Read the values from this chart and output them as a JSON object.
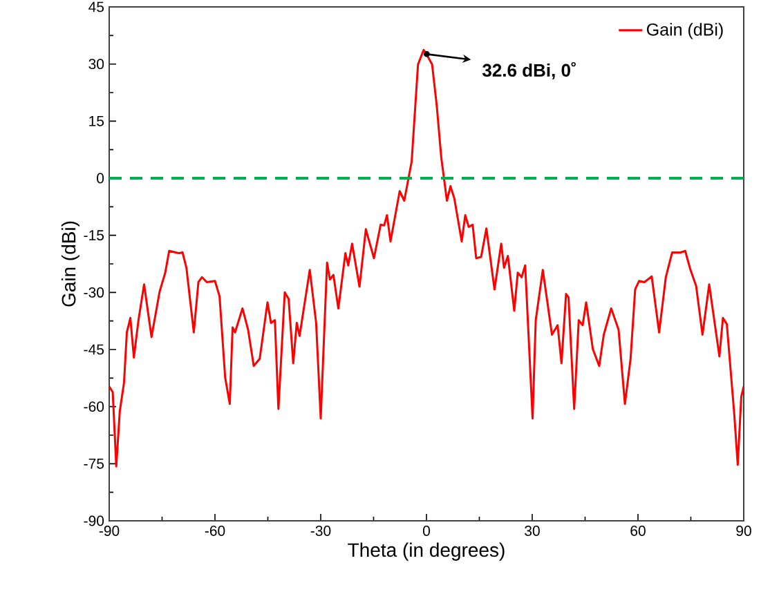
{
  "chart_data": {
    "type": "line",
    "xlabel": "Theta (in degrees)",
    "ylabel": "Gain (dBi)",
    "xlim": [
      -90,
      90
    ],
    "ylim": [
      -90,
      45
    ],
    "xticks": [
      -90,
      -60,
      -30,
      0,
      30,
      60,
      90
    ],
    "yticks": [
      -90,
      -75,
      -60,
      -45,
      -30,
      -15,
      0,
      15,
      30,
      45
    ],
    "legend": "top right",
    "grid": false,
    "marker": "none",
    "line_style": "solid",
    "ref_lines": [
      {
        "axis": "y",
        "value": 0,
        "color": "#00b050",
        "line_style": "dashed"
      }
    ],
    "annotations": [
      {
        "text": "**32.6 dBi, 0˚**",
        "x": 0,
        "y": 32.6
      }
    ],
    "series": [
      {
        "name": "Gain (dBi)",
        "color": "#ff0000",
        "x": [
          -90,
          -89,
          -88,
          -87,
          -85.8,
          -85,
          -84,
          -83,
          -81.7,
          -80.1,
          -78,
          -75.7,
          -74.1,
          -73,
          -70.2,
          -69.2,
          -68.1,
          -66,
          -64.7,
          -63.7,
          -62.3,
          -60,
          -58.7,
          -57.1,
          -55.8,
          -55,
          -54.3,
          -52.2,
          -50.6,
          -49,
          -47.3,
          -45.1,
          -44.1,
          -43,
          -42,
          -40.2,
          -39.1,
          -37.8,
          -36.8,
          -36,
          -33.1,
          -31.3,
          -30,
          -28.2,
          -27.4,
          -26.4,
          -25,
          -23,
          -22.2,
          -21.1,
          -19,
          -17.2,
          -14.9,
          -13,
          -12,
          -11.2,
          -10.2,
          -7.6,
          -6.3,
          -4.2,
          -2.4,
          -0.8,
          0,
          1.6,
          2.9,
          4.2,
          5.8,
          6.8,
          7.9,
          10,
          11,
          12,
          13.1,
          14.1,
          15.5,
          17,
          19.3,
          21.2,
          22,
          23.1,
          24.9,
          25.9,
          27,
          28,
          30.1,
          31,
          33,
          35.6,
          37.2,
          38.3,
          39.6,
          40.3,
          41.9,
          43.2,
          44.3,
          45.3,
          47.2,
          49,
          50.3,
          52.4,
          54.5,
          56.3,
          57.9,
          59.2,
          60.3,
          61.8,
          63.9,
          66,
          67.9,
          69.7,
          72.1,
          73.4,
          74.9,
          76.5,
          78.3,
          80.2,
          83.1,
          84.1,
          85.2,
          87.3,
          88.3,
          89.3,
          90
        ],
        "values": [
          -54.7,
          -56.2,
          -75.7,
          -61.2,
          -53.7,
          -40.5,
          -36.7,
          -47.1,
          -37.3,
          -27.9,
          -41.7,
          -29.8,
          -24.8,
          -19.1,
          -19.7,
          -19.5,
          -23.5,
          -40.5,
          -27.3,
          -26,
          -27.3,
          -27,
          -31,
          -52.4,
          -59.3,
          -39.2,
          -40.5,
          -34.2,
          -39.8,
          -49.3,
          -47.4,
          -32.6,
          -38,
          -37.3,
          -60.6,
          -30,
          -31.7,
          -48.6,
          -38,
          -41.4,
          -24.1,
          -38,
          -63.1,
          -22.2,
          -26.6,
          -25.4,
          -34.2,
          -19.7,
          -22.9,
          -17.2,
          -28.5,
          -13.4,
          -21,
          -12.2,
          -12.4,
          -9.7,
          -16.6,
          -3.4,
          -5.9,
          4.4,
          29.9,
          33.7,
          32.6,
          29.9,
          19.2,
          5.4,
          -5.9,
          -2.1,
          -5.3,
          -16.6,
          -9.7,
          -12.8,
          -12.2,
          -21,
          -20.7,
          -13.2,
          -29.2,
          -17.2,
          -23.5,
          -20.4,
          -34.8,
          -24.8,
          -26,
          -22.9,
          -63.1,
          -37.3,
          -24.1,
          -41.1,
          -38.6,
          -48.6,
          -30.4,
          -31.3,
          -60.6,
          -37.3,
          -38.6,
          -32.6,
          -44.9,
          -49.3,
          -41.1,
          -34.2,
          -39.8,
          -59.3,
          -47.4,
          -29.2,
          -27,
          -27.3,
          -25.8,
          -40.5,
          -26,
          -19.5,
          -19.5,
          -19.1,
          -24.1,
          -28.3,
          -41.1,
          -27.9,
          -46.8,
          -36.7,
          -38.3,
          -61.8,
          -75.3,
          -57.4,
          -54.7
        ]
      }
    ]
  }
}
